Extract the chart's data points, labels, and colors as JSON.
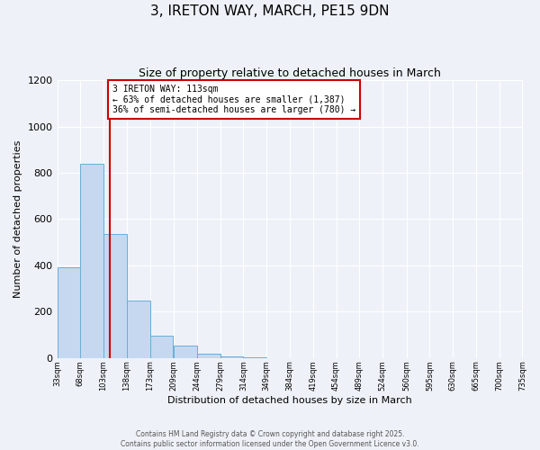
{
  "title": "3, IRETON WAY, MARCH, PE15 9DN",
  "subtitle": "Size of property relative to detached houses in March",
  "xlabel": "Distribution of detached houses by size in March",
  "ylabel": "Number of detached properties",
  "bar_color": "#c5d8f0",
  "bar_edge_color": "#6aaed6",
  "background_color": "#eef2f8",
  "grid_color": "#ffffff",
  "bin_edges": [
    33,
    68,
    103,
    138,
    173,
    209,
    244,
    279,
    314,
    349,
    384,
    419,
    454,
    489,
    524,
    560,
    595,
    630,
    665,
    700,
    735
  ],
  "bar_heights": [
    390,
    840,
    535,
    248,
    98,
    53,
    18,
    8,
    4,
    1,
    0,
    0,
    0,
    0,
    0,
    0,
    0,
    0,
    0,
    0
  ],
  "tick_labels": [
    "33sqm",
    "68sqm",
    "103sqm",
    "138sqm",
    "173sqm",
    "209sqm",
    "244sqm",
    "279sqm",
    "314sqm",
    "349sqm",
    "384sqm",
    "419sqm",
    "454sqm",
    "489sqm",
    "524sqm",
    "560sqm",
    "595sqm",
    "630sqm",
    "665sqm",
    "700sqm",
    "735sqm"
  ],
  "property_size": 113,
  "vline_color": "#cc0000",
  "annotation_text": "3 IRETON WAY: 113sqm\n← 63% of detached houses are smaller (1,387)\n36% of semi-detached houses are larger (780) →",
  "annotation_box_color": "#ffffff",
  "annotation_box_edge": "#cc0000",
  "ylim": [
    0,
    1200
  ],
  "xlim_min": 33,
  "xlim_max": 735,
  "footer_line1": "Contains HM Land Registry data © Crown copyright and database right 2025.",
  "footer_line2": "Contains public sector information licensed under the Open Government Licence v3.0."
}
